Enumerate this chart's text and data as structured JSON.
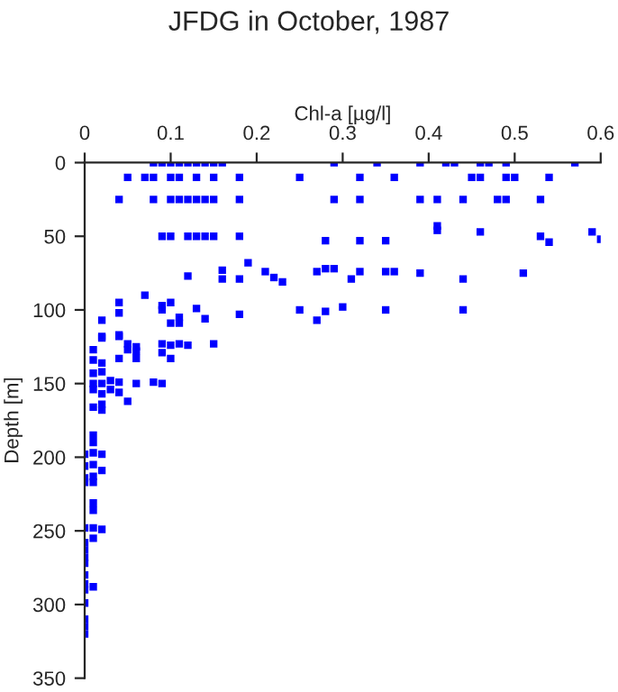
{
  "chart_data": {
    "type": "scatter",
    "title": "JFDG in October, 1987",
    "xlabel": "Chl-a [µg/l]",
    "ylabel": "Depth [m]",
    "xlim": [
      0,
      0.6
    ],
    "xticks": [
      0,
      0.1,
      0.2,
      0.3,
      0.4,
      0.5,
      0.6
    ],
    "ylim": [
      350,
      0
    ],
    "yticks": [
      0,
      50,
      100,
      150,
      200,
      250,
      300,
      350
    ],
    "grid": false,
    "legend": false,
    "marker": "square",
    "series": [
      {
        "color": "#0000ff",
        "x": [
          0.08,
          0.09,
          0.1,
          0.11,
          0.12,
          0.13,
          0.14,
          0.15,
          0.16,
          0.29,
          0.34,
          0.39,
          0.42,
          0.43,
          0.46,
          0.47,
          0.49,
          0.57,
          0.05,
          0.07,
          0.08,
          0.1,
          0.11,
          0.13,
          0.15,
          0.18,
          0.25,
          0.32,
          0.36,
          0.45,
          0.46,
          0.49,
          0.5,
          0.54,
          0.04,
          0.08,
          0.1,
          0.11,
          0.12,
          0.13,
          0.14,
          0.15,
          0.18,
          0.29,
          0.32,
          0.39,
          0.41,
          0.44,
          0.48,
          0.49,
          0.53,
          0.09,
          0.1,
          0.12,
          0.13,
          0.14,
          0.15,
          0.18,
          0.28,
          0.32,
          0.35,
          0.41,
          0.41,
          0.46,
          0.53,
          0.54,
          0.59,
          0.6,
          0.16,
          0.12,
          0.16,
          0.18,
          0.19,
          0.21,
          0.22,
          0.23,
          0.27,
          0.28,
          0.29,
          0.31,
          0.32,
          0.35,
          0.36,
          0.39,
          0.44,
          0.51,
          0.04,
          0.04,
          0.02,
          0.04,
          0.02,
          0.07,
          0.09,
          0.09,
          0.1,
          0.1,
          0.11,
          0.11,
          0.13,
          0.14,
          0.18,
          0.25,
          0.27,
          0.28,
          0.3,
          0.35,
          0.44,
          0.02,
          0.04,
          0.05,
          0.06,
          0.06,
          0.05,
          0.09,
          0.1,
          0.11,
          0.12,
          0.15,
          0.09,
          0.1,
          0.06,
          0.04,
          0.01,
          0.01,
          0.02,
          0.01,
          0.02,
          0.01,
          0.02,
          0.03,
          0.04,
          0.06,
          0.08,
          0.09,
          0.01,
          0.03,
          0.04,
          0.02,
          0.05,
          0.01,
          0.02,
          0.02,
          0.01,
          0.01,
          0.0,
          0.01,
          0.02,
          0.0,
          0.01,
          0.02,
          0.0,
          0.0,
          0.01,
          0.01,
          0.01,
          0.01,
          0.0,
          0.01,
          0.02,
          0.01,
          0.0,
          0.0,
          0.0,
          0.0,
          0.0,
          0.0,
          0.0,
          0.01,
          0.0,
          0.0,
          0.0,
          0.0
        ],
        "values": [
          0,
          0,
          0,
          0,
          0,
          0,
          0,
          0,
          0,
          0,
          0,
          0,
          0,
          0,
          0,
          0,
          0,
          0,
          10,
          10,
          10,
          10,
          10,
          10,
          10,
          10,
          10,
          10,
          10,
          10,
          10,
          10,
          10,
          10,
          25,
          25,
          25,
          25,
          25,
          25,
          25,
          25,
          25,
          25,
          25,
          25,
          25,
          25,
          25,
          25,
          25,
          50,
          50,
          50,
          50,
          50,
          50,
          50,
          53,
          53,
          53,
          43,
          46,
          47,
          50,
          54,
          47,
          52,
          73,
          77,
          79,
          79,
          68,
          74,
          78,
          81,
          74,
          72,
          72,
          79,
          74,
          74,
          74,
          75,
          79,
          75,
          95,
          102,
          107,
          118,
          118,
          90,
          97,
          100,
          95,
          109,
          109,
          105,
          99,
          106,
          103,
          100,
          107,
          101,
          98,
          100,
          100,
          119,
          117,
          123,
          125,
          128,
          127,
          123,
          124,
          123,
          124,
          123,
          129,
          133,
          133,
          133,
          127,
          134,
          136,
          143,
          142,
          150,
          150,
          148,
          149,
          150,
          149,
          150,
          154,
          154,
          156,
          157,
          162,
          166,
          164,
          168,
          185,
          190,
          198,
          197,
          198,
          206,
          205,
          209,
          214,
          217,
          213,
          217,
          231,
          236,
          248,
          248,
          249,
          255,
          258,
          263,
          268,
          272,
          280,
          286,
          290,
          288,
          299,
          310,
          315,
          320
        ]
      }
    ]
  }
}
